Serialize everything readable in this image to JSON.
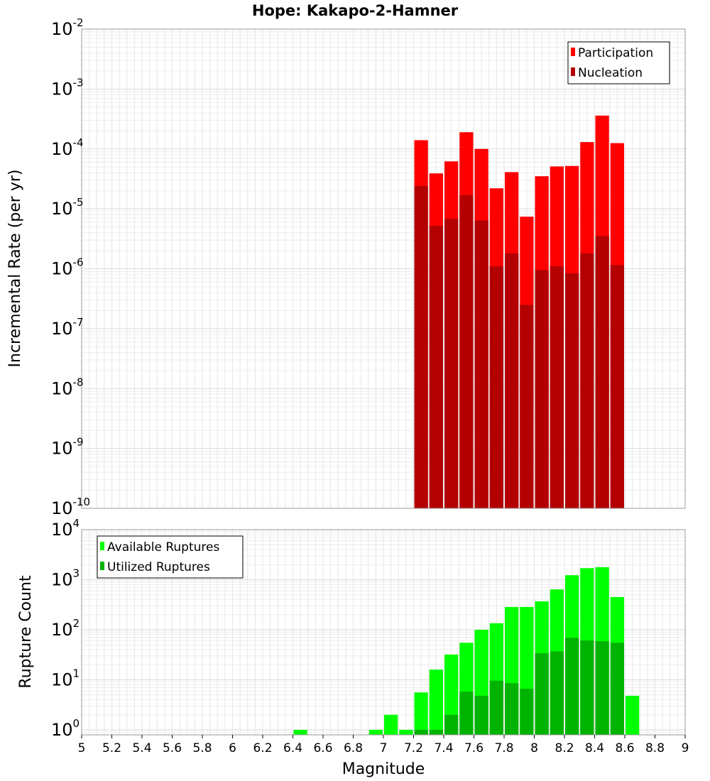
{
  "title": "Hope: Kakapo-2-Hamner",
  "chart_data": [
    {
      "type": "bar",
      "scale": "log",
      "ylabel": "Incremental Rate (per yr)",
      "xlabel": "",
      "xlim": [
        5,
        9
      ],
      "ylim_exponents": [
        -10,
        -2
      ],
      "ytick_base": "10",
      "ytick_exponents": [
        "-10",
        "-9",
        "-8",
        "-7",
        "-6",
        "-5",
        "-4",
        "-3",
        "-2"
      ],
      "bin_width": 0.1,
      "series": [
        {
          "name": "Participation",
          "color": "#ff0000",
          "x": [
            7.25,
            7.35,
            7.45,
            7.55,
            7.65,
            7.75,
            7.85,
            7.95,
            8.05,
            8.15,
            8.25,
            8.35,
            8.45,
            8.55
          ],
          "values": [
            0.00014,
            3.9e-05,
            6.2e-05,
            0.00019,
            0.0001,
            2.2e-05,
            4.1e-05,
            7.4e-06,
            3.5e-05,
            5.1e-05,
            5.2e-05,
            0.00013,
            0.00036,
            0.000125
          ]
        },
        {
          "name": "Nucleation",
          "color": "#b30000",
          "x": [
            7.25,
            7.35,
            7.45,
            7.55,
            7.65,
            7.75,
            7.85,
            7.95,
            8.05,
            8.15,
            8.25,
            8.35,
            8.45,
            8.55
          ],
          "values": [
            2.4e-05,
            5.2e-06,
            6.8e-06,
            1.7e-05,
            6.4e-06,
            1.1e-06,
            1.8e-06,
            2.5e-07,
            9.5e-07,
            1.1e-06,
            8.4e-07,
            1.8e-06,
            3.5e-06,
            1.15e-06
          ]
        }
      ],
      "legend": "top-right",
      "grid": true
    },
    {
      "type": "bar",
      "scale": "log",
      "ylabel": "Rupture Count",
      "xlabel": "Magnitude",
      "xlim": [
        5,
        9
      ],
      "ylim_exponents": [
        -0.1,
        4
      ],
      "ytick_base": "10",
      "ytick_exponents": [
        "0",
        "1",
        "2",
        "3",
        "4"
      ],
      "xtick_labels": [
        "5",
        "5.2",
        "5.4",
        "5.6",
        "5.8",
        "6",
        "6.2",
        "6.4",
        "6.6",
        "6.8",
        "7",
        "7.2",
        "7.4",
        "7.6",
        "7.8",
        "8",
        "8.2",
        "8.4",
        "8.6",
        "8.8",
        "9"
      ],
      "bin_width": 0.1,
      "series": [
        {
          "name": "Available Ruptures",
          "color": "#00ff00",
          "x": [
            6.45,
            6.95,
            7.05,
            7.15,
            7.25,
            7.35,
            7.45,
            7.55,
            7.65,
            7.75,
            7.85,
            7.95,
            8.05,
            8.15,
            8.25,
            8.35,
            8.45,
            8.55,
            8.65
          ],
          "values": [
            1,
            1,
            2,
            1,
            5.6,
            16,
            32,
            55,
            100,
            135,
            285,
            285,
            370,
            640,
            1230,
            1700,
            1780,
            450,
            4.8
          ]
        },
        {
          "name": "Utilized Ruptures",
          "color": "#00b300",
          "x": [
            7.25,
            7.35,
            7.45,
            7.55,
            7.65,
            7.75,
            7.85,
            7.95,
            8.05,
            8.15,
            8.25,
            8.35,
            8.45,
            8.55
          ],
          "values": [
            1,
            1,
            2,
            5.8,
            4.8,
            9.6,
            8.6,
            6.6,
            34,
            37,
            69,
            61,
            59,
            55
          ]
        }
      ],
      "legend": "top-left",
      "grid": true
    }
  ]
}
